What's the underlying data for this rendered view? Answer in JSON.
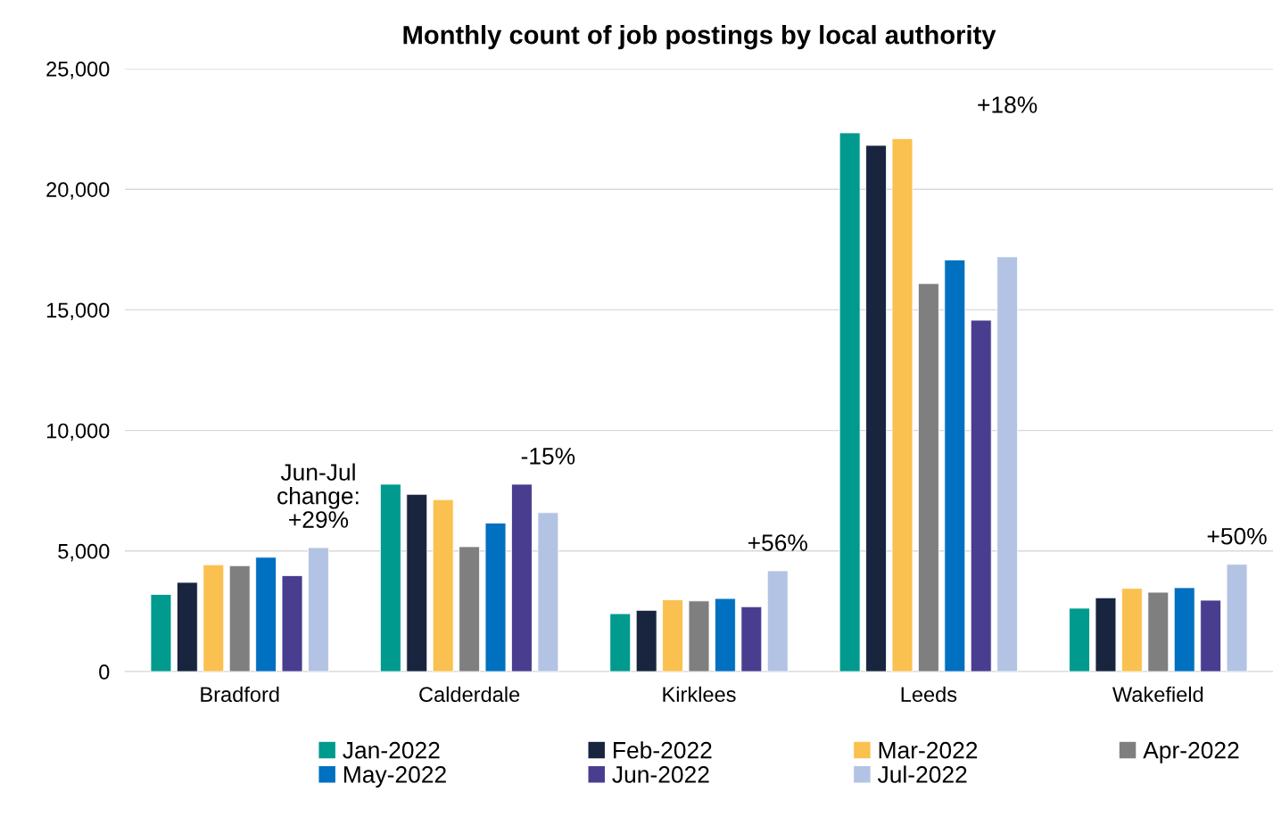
{
  "chart_data": {
    "type": "bar",
    "title": "Monthly count of job postings by local authority",
    "categories": [
      "Bradford",
      "Calderdale",
      "Kirklees",
      "Leeds",
      "Wakefield"
    ],
    "series": [
      {
        "name": "Jan-2022",
        "color": "#009a8e",
        "values": [
          3200,
          7770,
          2400,
          22340,
          2630
        ]
      },
      {
        "name": "Feb-2022",
        "color": "#19253f",
        "values": [
          3700,
          7350,
          2540,
          21820,
          3060
        ]
      },
      {
        "name": "Mar-2022",
        "color": "#fac150",
        "values": [
          4430,
          7130,
          2980,
          22100,
          3450
        ]
      },
      {
        "name": "Apr-2022",
        "color": "#7f7f7f",
        "values": [
          4390,
          5180,
          2930,
          16090,
          3290
        ]
      },
      {
        "name": "May-2022",
        "color": "#0070c0",
        "values": [
          4740,
          6160,
          3030,
          17070,
          3480
        ]
      },
      {
        "name": "Jun-2022",
        "color": "#483d8f",
        "values": [
          3980,
          7770,
          2690,
          14570,
          2960
        ]
      },
      {
        "name": "Jul-2022",
        "color": "#b3c3e3",
        "values": [
          5140,
          6590,
          4180,
          17200,
          4450
        ]
      }
    ],
    "annotations": [
      "Jun-Jul\nchange:\n+29%",
      "-15%",
      "+56%",
      "+18%",
      "+50%"
    ],
    "ylim": [
      0,
      25000
    ],
    "yticks": [
      {
        "value": 0,
        "label": "0"
      },
      {
        "value": 5000,
        "label": "5,000"
      },
      {
        "value": 10000,
        "label": "10,000"
      },
      {
        "value": 15000,
        "label": "15,000"
      },
      {
        "value": 20000,
        "label": "20,000"
      },
      {
        "value": 25000,
        "label": "25,000"
      }
    ],
    "grid": "y",
    "legend": "bottom"
  }
}
